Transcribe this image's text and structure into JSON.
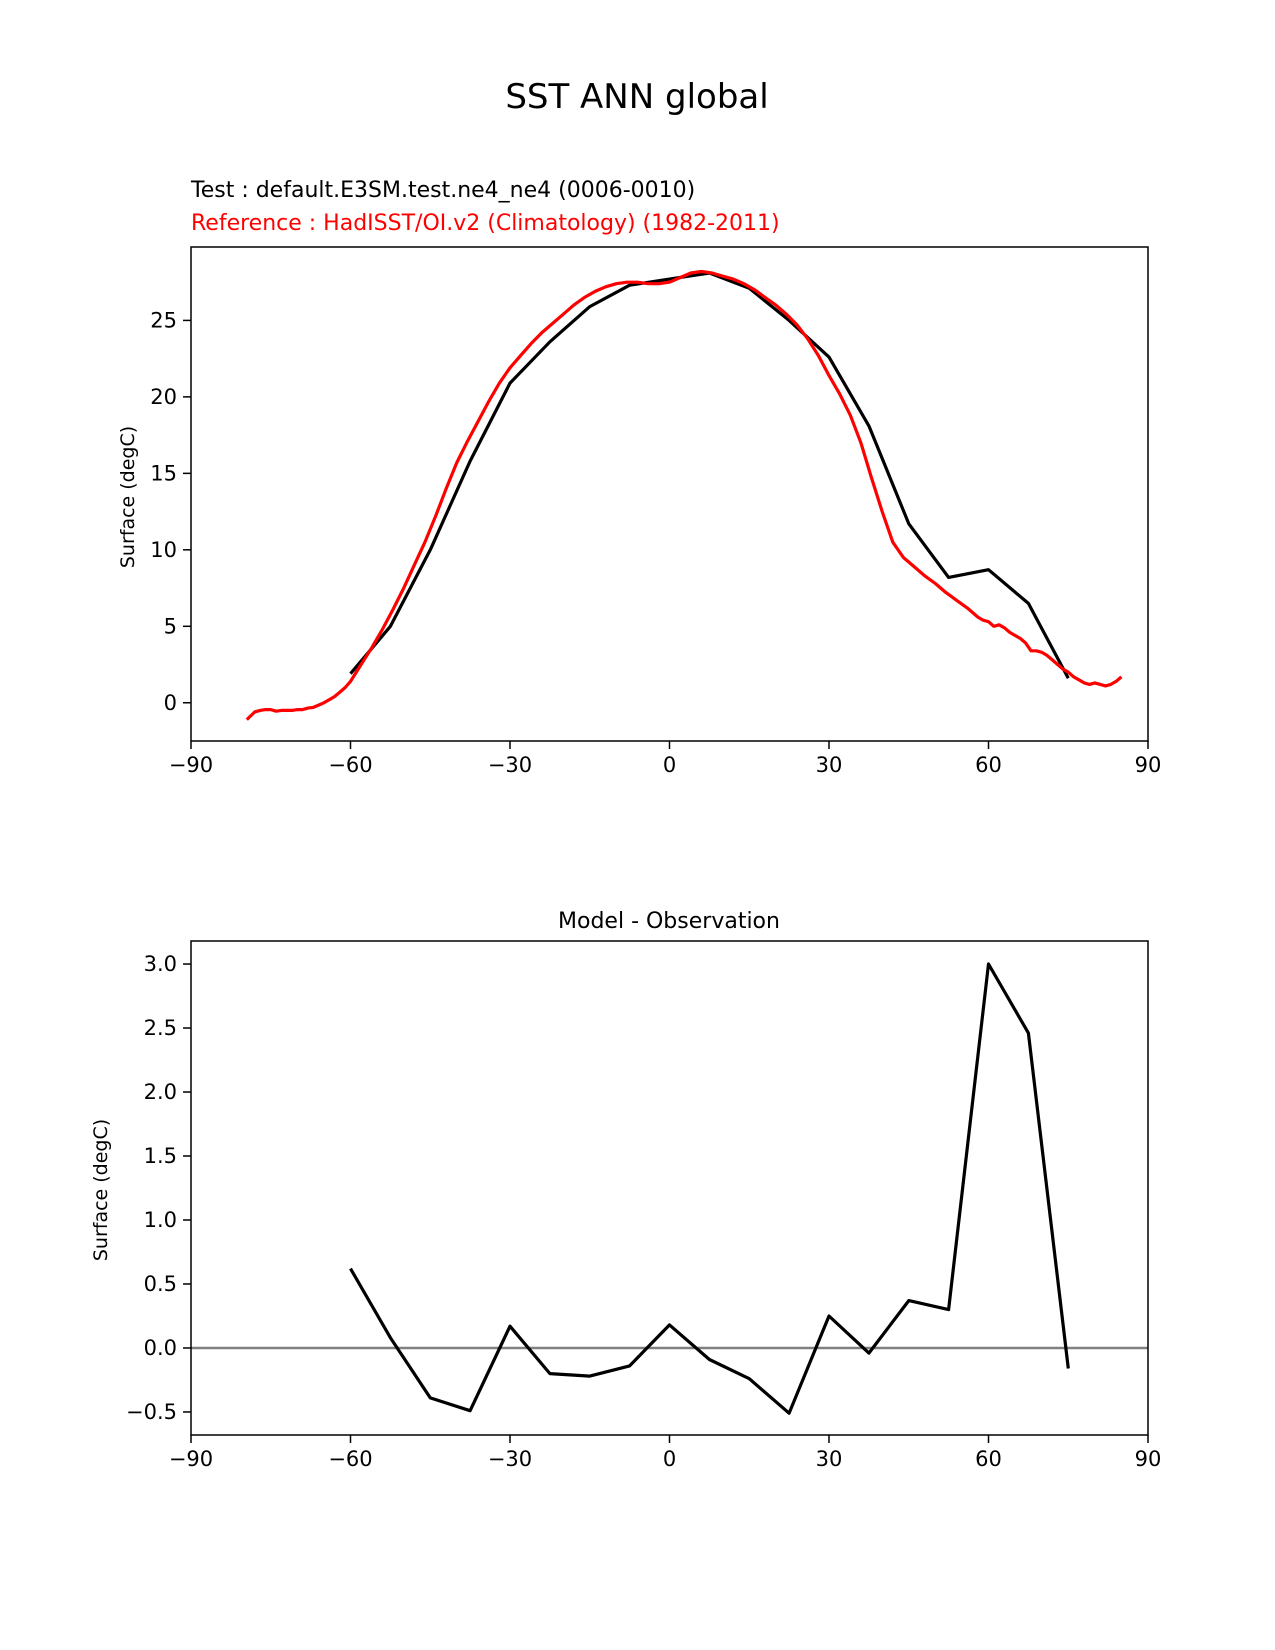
{
  "figure_title": "SST ANN global",
  "chart_data": [
    {
      "type": "line",
      "title_test": "Test : default.E3SM.test.ne4_ne4 (0006-0010)",
      "title_reference": "Reference : HadISST/OI.v2 (Climatology) (1982-2011)",
      "xlabel": "",
      "ylabel": "Surface (degC)",
      "xlim": [
        -90,
        90
      ],
      "ylim": [
        -2.5,
        29.8
      ],
      "xticks": [
        -90,
        -60,
        -30,
        0,
        30,
        60,
        90
      ],
      "xtick_labels": [
        "−90",
        "−60",
        "−30",
        "0",
        "30",
        "60",
        "90"
      ],
      "yticks": [
        0,
        5,
        10,
        15,
        20,
        25
      ],
      "ytick_labels": [
        "0",
        "5",
        "10",
        "15",
        "20",
        "25"
      ],
      "series": [
        {
          "name": "Test",
          "color": "#000000",
          "x": [
            -60,
            -52.5,
            -45,
            -37.5,
            -30,
            -22.5,
            -15,
            -7.5,
            0,
            7.5,
            15,
            22.5,
            30,
            37.5,
            45,
            52.5,
            60,
            67.5,
            75
          ],
          "y": [
            1.9,
            5.0,
            10.0,
            15.8,
            20.9,
            23.6,
            25.9,
            27.3,
            27.7,
            28.1,
            27.1,
            25.0,
            22.6,
            18.1,
            11.7,
            8.2,
            8.7,
            6.5,
            1.6
          ]
        },
        {
          "name": "Reference",
          "color": "#ff0000",
          "x": [
            -79.5,
            -78,
            -77,
            -76,
            -75,
            -74,
            -73,
            -72,
            -71,
            -70,
            -69,
            -68,
            -67,
            -66,
            -65,
            -64,
            -63,
            -62,
            -61,
            -60,
            -58,
            -56,
            -54,
            -52,
            -50,
            -48,
            -46,
            -44,
            -42,
            -40,
            -38,
            -36,
            -34,
            -32,
            -30,
            -28,
            -26,
            -24,
            -22,
            -20,
            -18,
            -16,
            -14,
            -12,
            -10,
            -8,
            -6,
            -4,
            -2,
            0,
            2,
            4,
            6,
            8,
            10,
            12,
            14,
            16,
            18,
            20,
            22,
            24,
            26,
            28,
            30,
            32,
            34,
            36,
            38,
            40,
            42,
            44,
            46,
            48,
            50,
            52,
            54,
            56,
            58,
            59,
            60,
            61,
            62,
            63,
            64,
            65,
            66,
            67,
            68,
            69,
            70,
            71,
            72,
            73,
            74,
            75,
            76,
            77,
            78,
            79,
            80,
            81,
            82,
            83,
            84,
            85
          ],
          "y": [
            -1.1,
            -0.6,
            -0.5,
            -0.45,
            -0.45,
            -0.55,
            -0.5,
            -0.5,
            -0.5,
            -0.45,
            -0.45,
            -0.35,
            -0.3,
            -0.15,
            0.0,
            0.2,
            0.4,
            0.7,
            1.0,
            1.4,
            2.5,
            3.6,
            4.8,
            6.1,
            7.5,
            9.0,
            10.5,
            12.2,
            14.0,
            15.7,
            17.1,
            18.4,
            19.7,
            20.9,
            21.9,
            22.7,
            23.5,
            24.2,
            24.8,
            25.4,
            26.0,
            26.5,
            26.9,
            27.2,
            27.4,
            27.5,
            27.5,
            27.4,
            27.4,
            27.5,
            27.8,
            28.1,
            28.2,
            28.1,
            27.9,
            27.7,
            27.4,
            27.0,
            26.5,
            26.0,
            25.4,
            24.7,
            23.8,
            22.7,
            21.4,
            20.2,
            18.8,
            17.0,
            14.7,
            12.5,
            10.5,
            9.5,
            8.9,
            8.3,
            7.8,
            7.2,
            6.7,
            6.2,
            5.6,
            5.4,
            5.3,
            5.0,
            5.1,
            4.9,
            4.6,
            4.4,
            4.2,
            3.9,
            3.4,
            3.4,
            3.3,
            3.1,
            2.8,
            2.5,
            2.2,
            2.0,
            1.7,
            1.5,
            1.3,
            1.2,
            1.3,
            1.2,
            1.1,
            1.2,
            1.4,
            1.7
          ]
        }
      ]
    },
    {
      "type": "line",
      "title": "Model - Observation",
      "xlabel": "",
      "ylabel": "Surface (degC)",
      "xlim": [
        -90,
        90
      ],
      "ylim": [
        -0.68,
        3.18
      ],
      "xticks": [
        -90,
        -60,
        -30,
        0,
        30,
        60,
        90
      ],
      "xtick_labels": [
        "−90",
        "−60",
        "−30",
        "0",
        "30",
        "60",
        "90"
      ],
      "yticks": [
        -0.5,
        0.0,
        0.5,
        1.0,
        1.5,
        2.0,
        2.5,
        3.0
      ],
      "ytick_labels": [
        "−0.5",
        "0.0",
        "0.5",
        "1.0",
        "1.5",
        "2.0",
        "2.5",
        "3.0"
      ],
      "reference_line": {
        "y": 0.0,
        "color": "#808080"
      },
      "series": [
        {
          "name": "Model - Observation",
          "color": "#000000",
          "x": [
            -60,
            -52.5,
            -45,
            -37.5,
            -30,
            -22.5,
            -15,
            -7.5,
            0,
            7.5,
            15,
            22.5,
            30,
            37.5,
            45,
            52.5,
            60,
            67.5,
            75
          ],
          "y": [
            0.62,
            0.08,
            -0.39,
            -0.49,
            0.17,
            -0.2,
            -0.22,
            -0.14,
            0.18,
            -0.09,
            -0.24,
            -0.51,
            0.25,
            -0.04,
            0.37,
            0.3,
            3.0,
            2.46,
            -0.16
          ]
        }
      ]
    }
  ]
}
